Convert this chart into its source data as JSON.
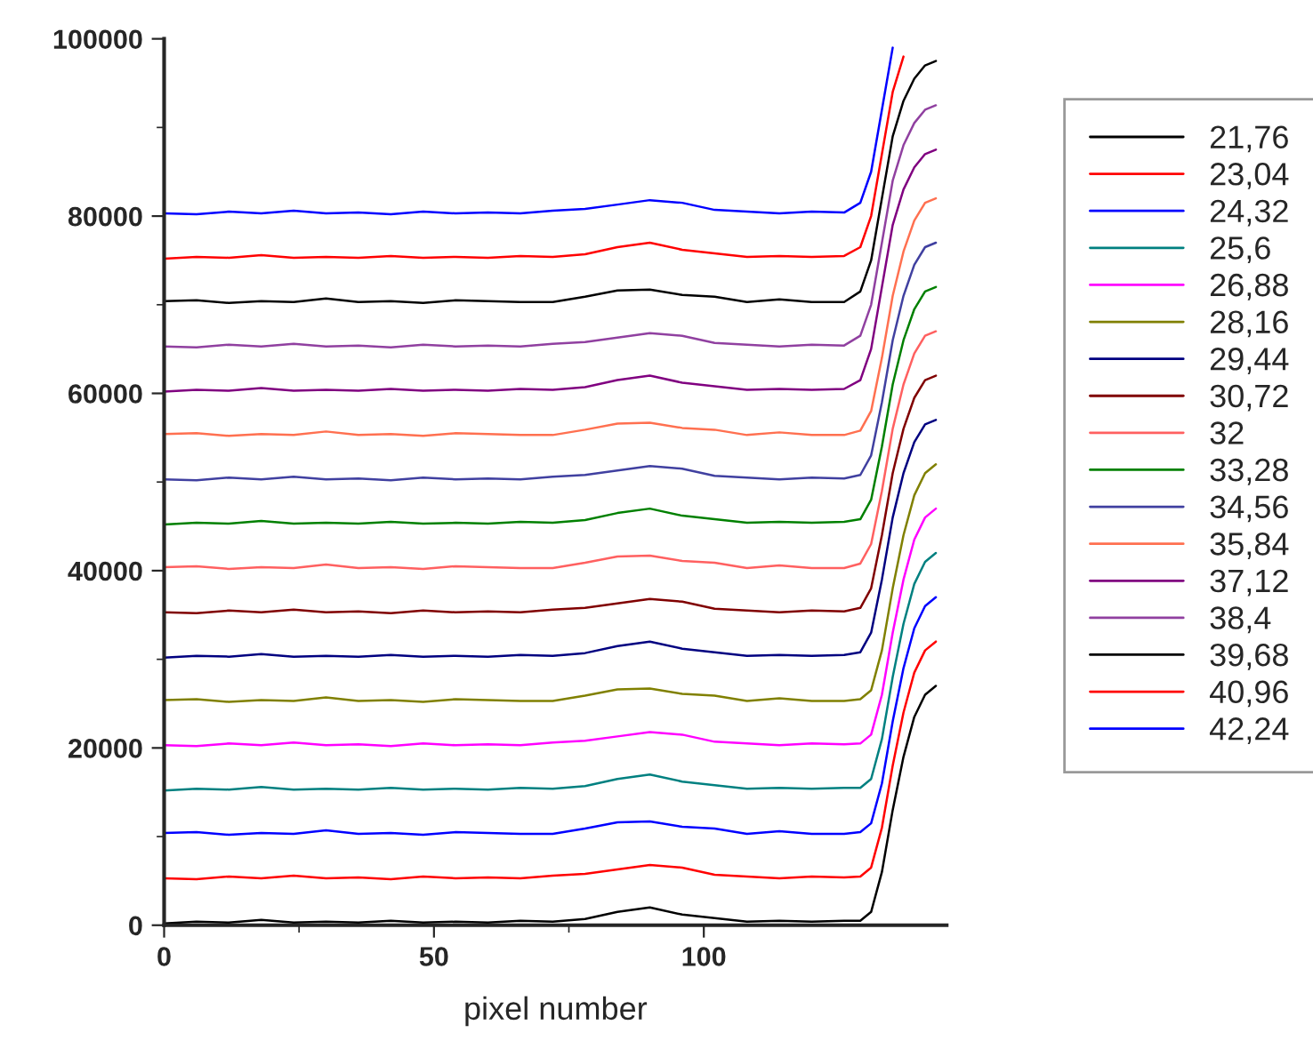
{
  "chart_data": {
    "type": "line",
    "xlabel": "pixel number",
    "x": [
      0,
      6,
      12,
      18,
      24,
      30,
      36,
      42,
      48,
      54,
      60,
      66,
      72,
      78,
      84,
      90,
      96,
      102,
      108,
      114,
      120,
      126,
      129,
      131,
      133,
      135,
      137,
      139,
      141,
      143
    ],
    "xlim": [
      0,
      145
    ],
    "xticks": [
      0,
      50,
      100
    ],
    "ylim": [
      0,
      100000
    ],
    "yticks": [
      0,
      20000,
      40000,
      60000,
      80000,
      100000
    ],
    "grid": false,
    "legend": "right",
    "marker": "none",
    "line_style": "solid",
    "series": [
      {
        "name": "21,76",
        "color": "#000000",
        "values": [
          200,
          400,
          300,
          600,
          300,
          400,
          300,
          500,
          300,
          400,
          300,
          500,
          400,
          700,
          1500,
          2000,
          1200,
          800,
          400,
          500,
          400,
          500,
          500,
          1500,
          6000,
          13000,
          19000,
          23500,
          26000,
          27000
        ]
      },
      {
        "name": "23,04",
        "color": "#ff0000",
        "values": [
          5300,
          5200,
          5500,
          5300,
          5600,
          5300,
          5400,
          5200,
          5500,
          5300,
          5400,
          5300,
          5600,
          5800,
          6300,
          6800,
          6500,
          5700,
          5500,
          5300,
          5500,
          5400,
          5500,
          6500,
          11000,
          18000,
          24000,
          28500,
          31000,
          32000
        ]
      },
      {
        "name": "24,32",
        "color": "#0000ff",
        "values": [
          10400,
          10500,
          10200,
          10400,
          10300,
          10700,
          10300,
          10400,
          10200,
          10500,
          10400,
          10300,
          10300,
          10900,
          11600,
          11700,
          11100,
          10900,
          10300,
          10600,
          10300,
          10300,
          10500,
          11500,
          16000,
          23000,
          29000,
          33500,
          36000,
          37000
        ]
      },
      {
        "name": "25,6",
        "color": "#008080",
        "values": [
          15200,
          15400,
          15300,
          15600,
          15300,
          15400,
          15300,
          15500,
          15300,
          15400,
          15300,
          15500,
          15400,
          15700,
          16500,
          17000,
          16200,
          15800,
          15400,
          15500,
          15400,
          15500,
          15500,
          16500,
          21000,
          28000,
          34000,
          38500,
          41000,
          42000
        ]
      },
      {
        "name": "26,88",
        "color": "#ff00ff",
        "values": [
          20300,
          20200,
          20500,
          20300,
          20600,
          20300,
          20400,
          20200,
          20500,
          20300,
          20400,
          20300,
          20600,
          20800,
          21300,
          21800,
          21500,
          20700,
          20500,
          20300,
          20500,
          20400,
          20500,
          21500,
          26000,
          33000,
          39000,
          43500,
          46000,
          47000
        ]
      },
      {
        "name": "28,16",
        "color": "#808000",
        "values": [
          25400,
          25500,
          25200,
          25400,
          25300,
          25700,
          25300,
          25400,
          25200,
          25500,
          25400,
          25300,
          25300,
          25900,
          26600,
          26700,
          26100,
          25900,
          25300,
          25600,
          25300,
          25300,
          25500,
          26500,
          31000,
          38000,
          44000,
          48500,
          51000,
          52000
        ]
      },
      {
        "name": "29,44",
        "color": "#000080",
        "values": [
          30200,
          30400,
          30300,
          30600,
          30300,
          30400,
          30300,
          30500,
          30300,
          30400,
          30300,
          30500,
          30400,
          30700,
          31500,
          32000,
          31200,
          30800,
          30400,
          30500,
          30400,
          30500,
          30800,
          33000,
          39000,
          46000,
          51000,
          54500,
          56500,
          57000
        ]
      },
      {
        "name": "30,72",
        "color": "#800000",
        "values": [
          35300,
          35200,
          35500,
          35300,
          35600,
          35300,
          35400,
          35200,
          35500,
          35300,
          35400,
          35300,
          35600,
          35800,
          36300,
          36800,
          36500,
          35700,
          35500,
          35300,
          35500,
          35400,
          35800,
          38000,
          44000,
          51000,
          56000,
          59500,
          61500,
          62000
        ]
      },
      {
        "name": "32",
        "color": "#ff6060",
        "values": [
          40400,
          40500,
          40200,
          40400,
          40300,
          40700,
          40300,
          40400,
          40200,
          40500,
          40400,
          40300,
          40300,
          40900,
          41600,
          41700,
          41100,
          40900,
          40300,
          40600,
          40300,
          40300,
          40800,
          43000,
          49000,
          56000,
          61000,
          64500,
          66500,
          67000
        ]
      },
      {
        "name": "33,28",
        "color": "#008000",
        "values": [
          45200,
          45400,
          45300,
          45600,
          45300,
          45400,
          45300,
          45500,
          45300,
          45400,
          45300,
          45500,
          45400,
          45700,
          46500,
          47000,
          46200,
          45800,
          45400,
          45500,
          45400,
          45500,
          45800,
          48000,
          54000,
          61000,
          66000,
          69500,
          71500,
          72000
        ]
      },
      {
        "name": "34,56",
        "color": "#4040a0",
        "values": [
          50300,
          50200,
          50500,
          50300,
          50600,
          50300,
          50400,
          50200,
          50500,
          50300,
          50400,
          50300,
          50600,
          50800,
          51300,
          51800,
          51500,
          50700,
          50500,
          50300,
          50500,
          50400,
          50800,
          53000,
          59000,
          66000,
          71000,
          74500,
          76500,
          77000
        ]
      },
      {
        "name": "35,84",
        "color": "#ff7050",
        "values": [
          55400,
          55500,
          55200,
          55400,
          55300,
          55700,
          55300,
          55400,
          55200,
          55500,
          55400,
          55300,
          55300,
          55900,
          56600,
          56700,
          56100,
          55900,
          55300,
          55600,
          55300,
          55300,
          55800,
          58000,
          64000,
          71000,
          76000,
          79500,
          81500,
          82000
        ]
      },
      {
        "name": "37,12",
        "color": "#800080",
        "values": [
          60200,
          60400,
          60300,
          60600,
          60300,
          60400,
          60300,
          60500,
          60300,
          60400,
          60300,
          60500,
          60400,
          60700,
          61500,
          62000,
          61200,
          60800,
          60400,
          60500,
          60400,
          60500,
          61500,
          65000,
          72000,
          79000,
          83000,
          85500,
          87000,
          87500
        ]
      },
      {
        "name": "38,4",
        "color": "#9040a0",
        "values": [
          65300,
          65200,
          65500,
          65300,
          65600,
          65300,
          65400,
          65200,
          65500,
          65300,
          65400,
          65300,
          65600,
          65800,
          66300,
          66800,
          66500,
          65700,
          65500,
          65300,
          65500,
          65400,
          66500,
          70000,
          77000,
          84000,
          88000,
          90500,
          92000,
          92500
        ]
      },
      {
        "name": "39,68",
        "color": "#000000",
        "values": [
          70400,
          70500,
          70200,
          70400,
          70300,
          70700,
          70300,
          70400,
          70200,
          70500,
          70400,
          70300,
          70300,
          70900,
          71600,
          71700,
          71100,
          70900,
          70300,
          70600,
          70300,
          70300,
          71500,
          75000,
          82000,
          89000,
          93000,
          95500,
          97000,
          97500
        ]
      },
      {
        "name": "40,96",
        "color": "#ff0000",
        "values": [
          75200,
          75400,
          75300,
          75600,
          75300,
          75400,
          75300,
          75500,
          75300,
          75400,
          75300,
          75500,
          75400,
          75700,
          76500,
          77000,
          76200,
          75800,
          75400,
          75500,
          75400,
          75500,
          76500,
          80000,
          87000,
          94000,
          98000,
          null,
          null,
          null
        ]
      },
      {
        "name": "42,24",
        "color": "#0000ff",
        "values": [
          80300,
          80200,
          80500,
          80300,
          80600,
          80300,
          80400,
          80200,
          80500,
          80300,
          80400,
          80300,
          80600,
          80800,
          81300,
          81800,
          81500,
          80700,
          80500,
          80300,
          80500,
          80400,
          81500,
          85000,
          92000,
          99000,
          null,
          null,
          null,
          null
        ]
      }
    ]
  }
}
